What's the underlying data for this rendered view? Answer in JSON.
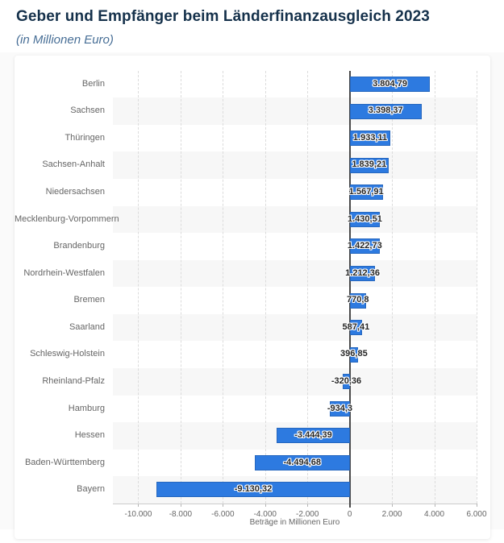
{
  "header": {
    "title": "Geber und Empfänger beim Länderfinanzausgleich 2023",
    "subtitle": "(in Millionen Euro)"
  },
  "chart_data": {
    "type": "bar",
    "orientation": "horizontal",
    "title": "Geber und Empfänger beim Länderfinanzausgleich 2023",
    "subtitle": "(in Millionen Euro)",
    "categories": [
      "Berlin",
      "Sachsen",
      "Thüringen",
      "Sachsen-Anhalt",
      "Niedersachsen",
      "Mecklenburg-Vorpommern",
      "Brandenburg",
      "Nordrhein-Westfalen",
      "Bremen",
      "Saarland",
      "Schleswig-Holstein",
      "Rheinland-Pfalz",
      "Hamburg",
      "Hessen",
      "Baden-Württemberg",
      "Bayern"
    ],
    "values": [
      3804.79,
      3398.37,
      1933.11,
      1839.21,
      1567.91,
      1430.51,
      1422.73,
      1212.36,
      770.8,
      587.41,
      396.85,
      -320.36,
      -934.3,
      -3444.39,
      -4494.68,
      -9130.32
    ],
    "value_labels": [
      "3.804,79",
      "3.398,37",
      "1.933,11",
      "1.839,21",
      "1.567,91",
      "1.430,51",
      "1.422,73",
      "1.212,36",
      "770,8",
      "587,41",
      "396,85",
      "-320,36",
      "-934,3",
      "-3.444,39",
      "-4.494,68",
      "-9.130,32"
    ],
    "xlabel": "Beträge in Millionen Euro",
    "ylabel": "",
    "x_ticks": [
      -10000,
      -8000,
      -6000,
      -4000,
      -2000,
      0,
      2000,
      4000,
      6000
    ],
    "x_tick_labels": [
      "-10.000",
      "-8.000",
      "-6.000",
      "-4.000",
      "-2.000",
      "0",
      "2.000",
      "4.000",
      "6.000"
    ],
    "xlim": [
      -11200,
      6000
    ],
    "grid": "vertical-dashed",
    "legend": false,
    "zebra_rows": true
  },
  "colors": {
    "bar": "#2d7ae0",
    "row_stripe": "#f7f7f7",
    "title": "#15314b",
    "subtitle": "#476e96",
    "axis_text": "#666666",
    "zero_line": "#4a4a4a",
    "gridline": "#dcdcdc",
    "card_bg": "#ffffff",
    "page_bg": "#fafafa"
  }
}
